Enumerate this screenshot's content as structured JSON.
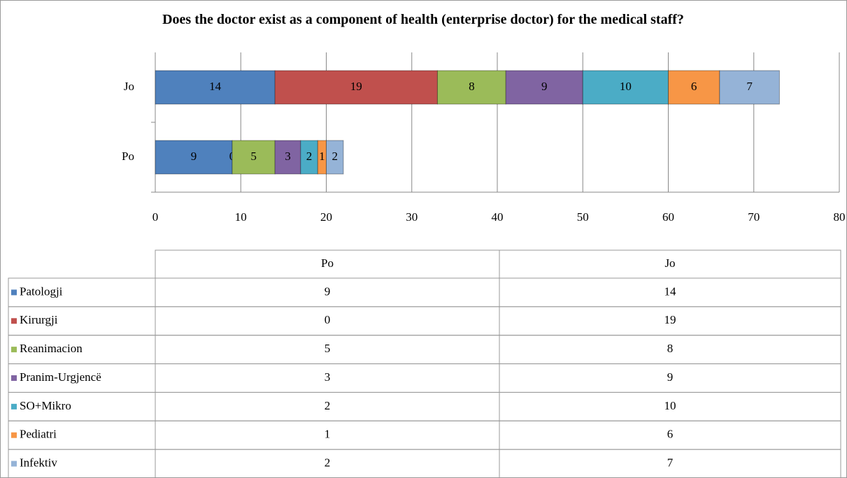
{
  "chart_data": {
    "type": "bar",
    "orientation": "horizontal",
    "stacked": true,
    "title": "Does the doctor exist as a component  of health (enterprise doctor) for the medical staff?",
    "categories": [
      "Po",
      "Jo"
    ],
    "series": [
      {
        "name": "Patologji",
        "color": "#4f81bd",
        "values": [
          9,
          14
        ]
      },
      {
        "name": "Kirurgji",
        "color": "#c0504d",
        "values": [
          0,
          19
        ]
      },
      {
        "name": "Reanimacion",
        "color": "#9bbb59",
        "values": [
          5,
          8
        ]
      },
      {
        "name": "Pranim-Urgjencë",
        "color": "#8064a2",
        "values": [
          3,
          9
        ]
      },
      {
        "name": "SO+Mikro",
        "color": "#4bacc6",
        "values": [
          2,
          10
        ]
      },
      {
        "name": "Pediatri",
        "color": "#f79646",
        "values": [
          1,
          6
        ]
      },
      {
        "name": "Infektiv",
        "color": "#95b3d7",
        "values": [
          2,
          7
        ]
      }
    ],
    "xlim": [
      0,
      80
    ],
    "xticks": [
      0,
      10,
      20,
      30,
      40,
      50,
      60,
      70,
      80
    ],
    "grid": true,
    "data_table": true
  }
}
